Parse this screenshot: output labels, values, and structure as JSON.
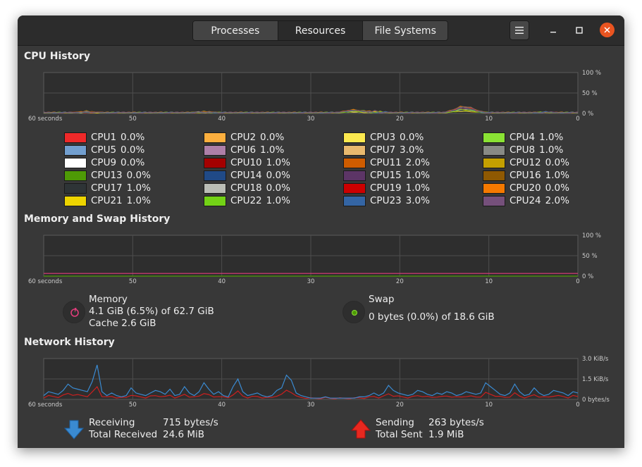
{
  "tabs": [
    {
      "label": "Processes",
      "active": false
    },
    {
      "label": "Resources",
      "active": true
    },
    {
      "label": "File Systems",
      "active": false
    }
  ],
  "window_controls": {
    "menu": "hamburger-icon",
    "minimize": "minimize-icon",
    "maximize": "maximize-icon",
    "close": "close-icon"
  },
  "cpu": {
    "title": "CPU History",
    "x_ticks": [
      "60 seconds",
      "50",
      "40",
      "30",
      "20",
      "10",
      "0"
    ],
    "y_ticks": [
      "100 %",
      "50 %",
      "0 %"
    ],
    "cores": [
      {
        "name": "CPU1",
        "value": "0.0%",
        "color": "#ef2929"
      },
      {
        "name": "CPU2",
        "value": "0.0%",
        "color": "#fcaf3e"
      },
      {
        "name": "CPU3",
        "value": "0.0%",
        "color": "#fce94f"
      },
      {
        "name": "CPU4",
        "value": "1.0%",
        "color": "#8ae234"
      },
      {
        "name": "CPU5",
        "value": "0.0%",
        "color": "#729fcf"
      },
      {
        "name": "CPU6",
        "value": "1.0%",
        "color": "#ad7fa8"
      },
      {
        "name": "CPU7",
        "value": "3.0%",
        "color": "#e9b96e"
      },
      {
        "name": "CPU8",
        "value": "1.0%",
        "color": "#888a85"
      },
      {
        "name": "CPU9",
        "value": "0.0%",
        "color": "#ffffff"
      },
      {
        "name": "CPU10",
        "value": "1.0%",
        "color": "#a40000"
      },
      {
        "name": "CPU11",
        "value": "2.0%",
        "color": "#ce5c00"
      },
      {
        "name": "CPU12",
        "value": "0.0%",
        "color": "#c4a000"
      },
      {
        "name": "CPU13",
        "value": "0.0%",
        "color": "#4e9a06"
      },
      {
        "name": "CPU14",
        "value": "0.0%",
        "color": "#204a87"
      },
      {
        "name": "CPU15",
        "value": "1.0%",
        "color": "#5c3566"
      },
      {
        "name": "CPU16",
        "value": "1.0%",
        "color": "#8f5902"
      },
      {
        "name": "CPU17",
        "value": "1.0%",
        "color": "#2e3436"
      },
      {
        "name": "CPU18",
        "value": "0.0%",
        "color": "#babdb6"
      },
      {
        "name": "CPU19",
        "value": "1.0%",
        "color": "#cc0000"
      },
      {
        "name": "CPU20",
        "value": "0.0%",
        "color": "#f57900"
      },
      {
        "name": "CPU21",
        "value": "1.0%",
        "color": "#edd400"
      },
      {
        "name": "CPU22",
        "value": "1.0%",
        "color": "#73d216"
      },
      {
        "name": "CPU23",
        "value": "3.0%",
        "color": "#3465a4"
      },
      {
        "name": "CPU24",
        "value": "2.0%",
        "color": "#75507b"
      }
    ]
  },
  "memory": {
    "title": "Memory and Swap History",
    "x_ticks": [
      "60 seconds",
      "50",
      "40",
      "30",
      "20",
      "10",
      "0"
    ],
    "y_ticks": [
      "100 %",
      "50 %",
      "0 %"
    ],
    "memory_label": "Memory",
    "memory_usage": "4.1 GiB (6.5%) of 62.7 GiB",
    "memory_cache": "Cache 2.6 GiB",
    "memory_color": "#e03d7b",
    "memory_percent": 6.5,
    "swap_label": "Swap",
    "swap_usage": "0 bytes (0.0%) of 18.6 GiB",
    "swap_color": "#4e9a06",
    "swap_percent": 0.0
  },
  "network": {
    "title": "Network History",
    "x_ticks": [
      "60 seconds",
      "50",
      "40",
      "30",
      "20",
      "10",
      "0"
    ],
    "y_ticks": [
      "3.0 KiB/s",
      "1.5 KiB/s",
      "0 bytes/s"
    ],
    "receiving_label": "Receiving",
    "receiving_value": "715 bytes/s",
    "total_received_label": "Total Received",
    "total_received_value": "24.6 MiB",
    "sending_label": "Sending",
    "sending_value": "263 bytes/s",
    "total_sent_label": "Total Sent",
    "total_sent_value": "1.9 MiB",
    "receive_color": "#3a8ad1",
    "send_color": "#cc1f1f"
  }
}
